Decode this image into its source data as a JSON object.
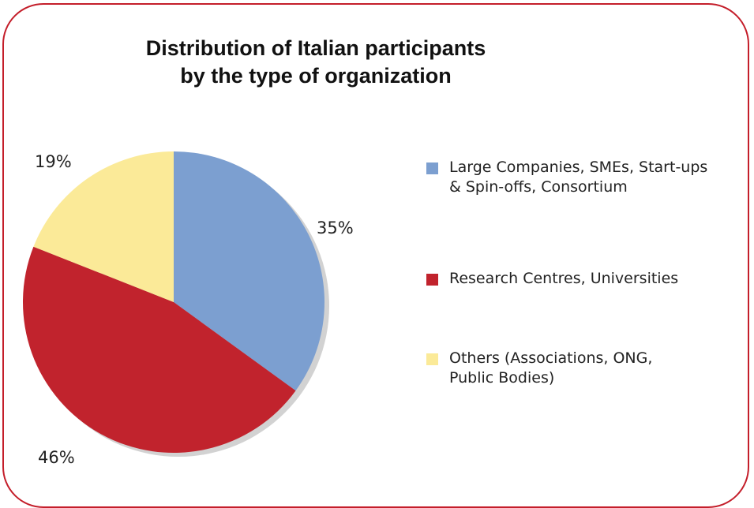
{
  "chart_data": {
    "type": "pie",
    "title": [
      "Distribution of Italian participants",
      "by the type of organization"
    ],
    "slices": [
      {
        "label_lines": [
          "Large Companies, SMEs, Start-ups",
          "& Spin-offs, Consortium"
        ],
        "value": 35,
        "value_label": "35%",
        "color": "#7c9fd0"
      },
      {
        "label_lines": [
          "Research Centres, Universities"
        ],
        "value": 46,
        "value_label": "46%",
        "color": "#c1232d"
      },
      {
        "label_lines": [
          "Others (Associations, ONG,",
          "Public Bodies)"
        ],
        "value": 19,
        "value_label": "19%",
        "color": "#fbea98"
      }
    ],
    "start_angle_deg": 0,
    "direction": "clockwise",
    "legend_position": "right"
  },
  "colors": {
    "frame": "#c41e2a"
  }
}
